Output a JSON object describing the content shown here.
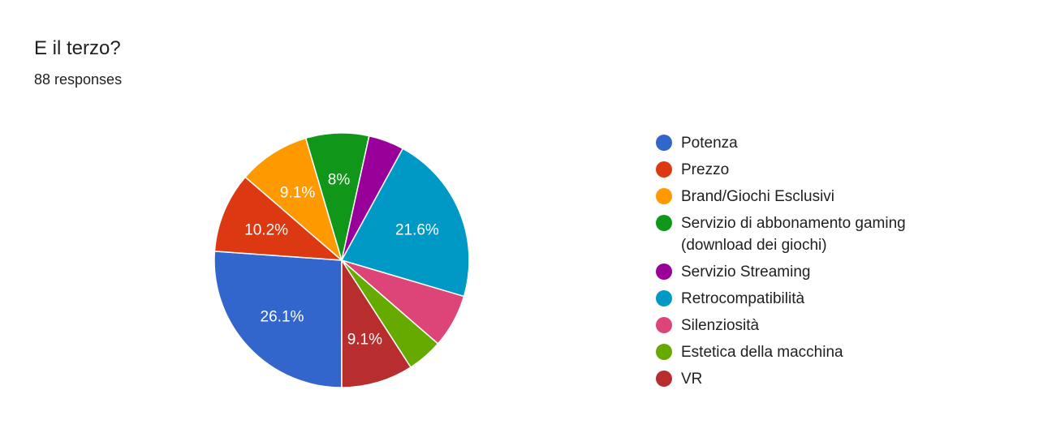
{
  "card": {
    "title": "E il terzo?",
    "subtitle": "88 responses"
  },
  "chart_data": {
    "type": "pie",
    "title": "E il terzo?",
    "subtitle": "88 responses",
    "legend_position": "right",
    "start_angle_deg": 90,
    "direction": "clockwise",
    "slices": [
      {
        "label": "Potenza",
        "value": 26.1,
        "display": "26.1%",
        "color": "#3366cc"
      },
      {
        "label": "Prezzo",
        "value": 10.2,
        "display": "10.2%",
        "color": "#dc3912"
      },
      {
        "label": "Brand/Giochi Esclusivi",
        "value": 9.1,
        "display": "9.1%",
        "color": "#ff9900"
      },
      {
        "label": "Servizio di abbonamento gaming (download dei giochi)",
        "value": 8.0,
        "display": "8%",
        "color": "#109618"
      },
      {
        "label": "Servizio Streaming",
        "value": 4.5,
        "display": "",
        "color": "#990099"
      },
      {
        "label": "Retrocompatibilità",
        "value": 21.6,
        "display": "21.6%",
        "color": "#0099c6"
      },
      {
        "label": "Silenziosità",
        "value": 6.8,
        "display": "",
        "color": "#dd4477"
      },
      {
        "label": "Estetica della macchina",
        "value": 4.5,
        "display": "",
        "color": "#66aa00"
      },
      {
        "label": "VR",
        "value": 9.1,
        "display": "9.1%",
        "color": "#b82e2e"
      }
    ]
  }
}
